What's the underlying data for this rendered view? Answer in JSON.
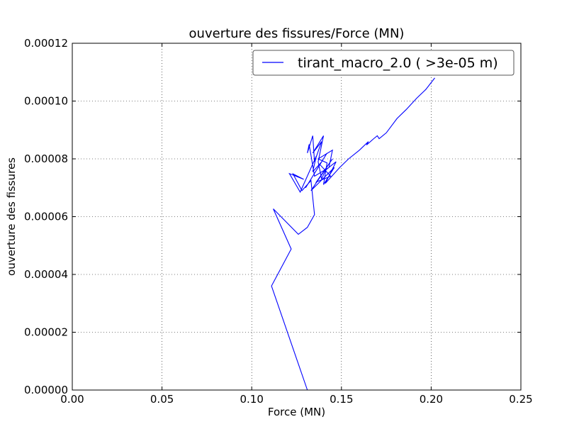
{
  "chart_data": {
    "type": "line",
    "title": "ouverture des fissures/Force (MN)",
    "xlabel": "Force (MN)",
    "ylabel": "ouverture des fissures",
    "xlim": [
      0,
      0.25
    ],
    "ylim": [
      0,
      0.00012
    ],
    "xticks": [
      0,
      0.05,
      0.1,
      0.15,
      0.2,
      0.25
    ],
    "xtick_labels": [
      "0.00",
      "0.05",
      "0.10",
      "0.15",
      "0.20",
      "0.25"
    ],
    "yticks": [
      0,
      2e-05,
      4e-05,
      6e-05,
      8e-05,
      0.0001,
      0.00012
    ],
    "ytick_labels": [
      "0.00000",
      "0.00002",
      "0.00004",
      "0.00006",
      "0.00008",
      "0.00010",
      "0.00012"
    ],
    "grid": true,
    "legend_position": "top-right",
    "series": [
      {
        "name": "tirant_macro_2.0 ( >3e-05 m)",
        "color": "#0000ff",
        "points": [
          [
            0.131,
            0.0
          ],
          [
            0.111,
            3.6e-05
          ],
          [
            0.122,
            4.88e-05
          ],
          [
            0.112,
            6.27e-05
          ],
          [
            0.126,
            5.39e-05
          ],
          [
            0.131,
            5.63e-05
          ],
          [
            0.135,
            6.07e-05
          ],
          [
            0.133,
            7.25e-05
          ],
          [
            0.128,
            6.9e-05
          ],
          [
            0.123,
            7.48e-05
          ],
          [
            0.129,
            7.29e-05
          ],
          [
            0.121,
            7.49e-05
          ],
          [
            0.127,
            6.85e-05
          ],
          [
            0.136,
            8.1e-05
          ],
          [
            0.134,
            7.55e-05
          ],
          [
            0.139,
            7.9e-05
          ],
          [
            0.13,
            7e-05
          ],
          [
            0.142,
            8.2e-05
          ],
          [
            0.138,
            7.8e-05
          ],
          [
            0.144,
            7.4e-05
          ],
          [
            0.136,
            7.2e-05
          ],
          [
            0.145,
            8e-05
          ],
          [
            0.133,
            6.9e-05
          ],
          [
            0.146,
            7.7e-05
          ],
          [
            0.14,
            7.11e-05
          ],
          [
            0.142,
            7.86e-05
          ],
          [
            0.137,
            8e-05
          ],
          [
            0.145,
            8.3e-05
          ],
          [
            0.143,
            7.7e-05
          ],
          [
            0.135,
            7.4e-05
          ],
          [
            0.132,
            8.5e-05
          ],
          [
            0.131,
            8.2e-05
          ],
          [
            0.134,
            8.8e-05
          ],
          [
            0.135,
            7.9e-05
          ],
          [
            0.139,
            8.6e-05
          ],
          [
            0.134,
            8.2e-05
          ],
          [
            0.14,
            8.8e-05
          ],
          [
            0.137,
            7.9e-05
          ],
          [
            0.139,
            7.3e-05
          ],
          [
            0.141,
            7.6e-05
          ],
          [
            0.145,
            7.8e-05
          ],
          [
            0.147,
            7.9e-05
          ],
          [
            0.141,
            7.15e-05
          ],
          [
            0.149,
            7.7e-05
          ],
          [
            0.154,
            8e-05
          ],
          [
            0.16,
            8.3e-05
          ],
          [
            0.165,
            8.6e-05
          ],
          [
            0.164,
            8.48e-05
          ],
          [
            0.168,
            8.7e-05
          ],
          [
            0.17,
            8.8e-05
          ],
          [
            0.171,
            8.7e-05
          ],
          [
            0.175,
            8.9e-05
          ],
          [
            0.181,
            9.4e-05
          ],
          [
            0.186,
            9.7e-05
          ],
          [
            0.192,
            0.000101
          ],
          [
            0.197,
            0.000104
          ],
          [
            0.202,
            0.000108
          ]
        ]
      }
    ]
  }
}
